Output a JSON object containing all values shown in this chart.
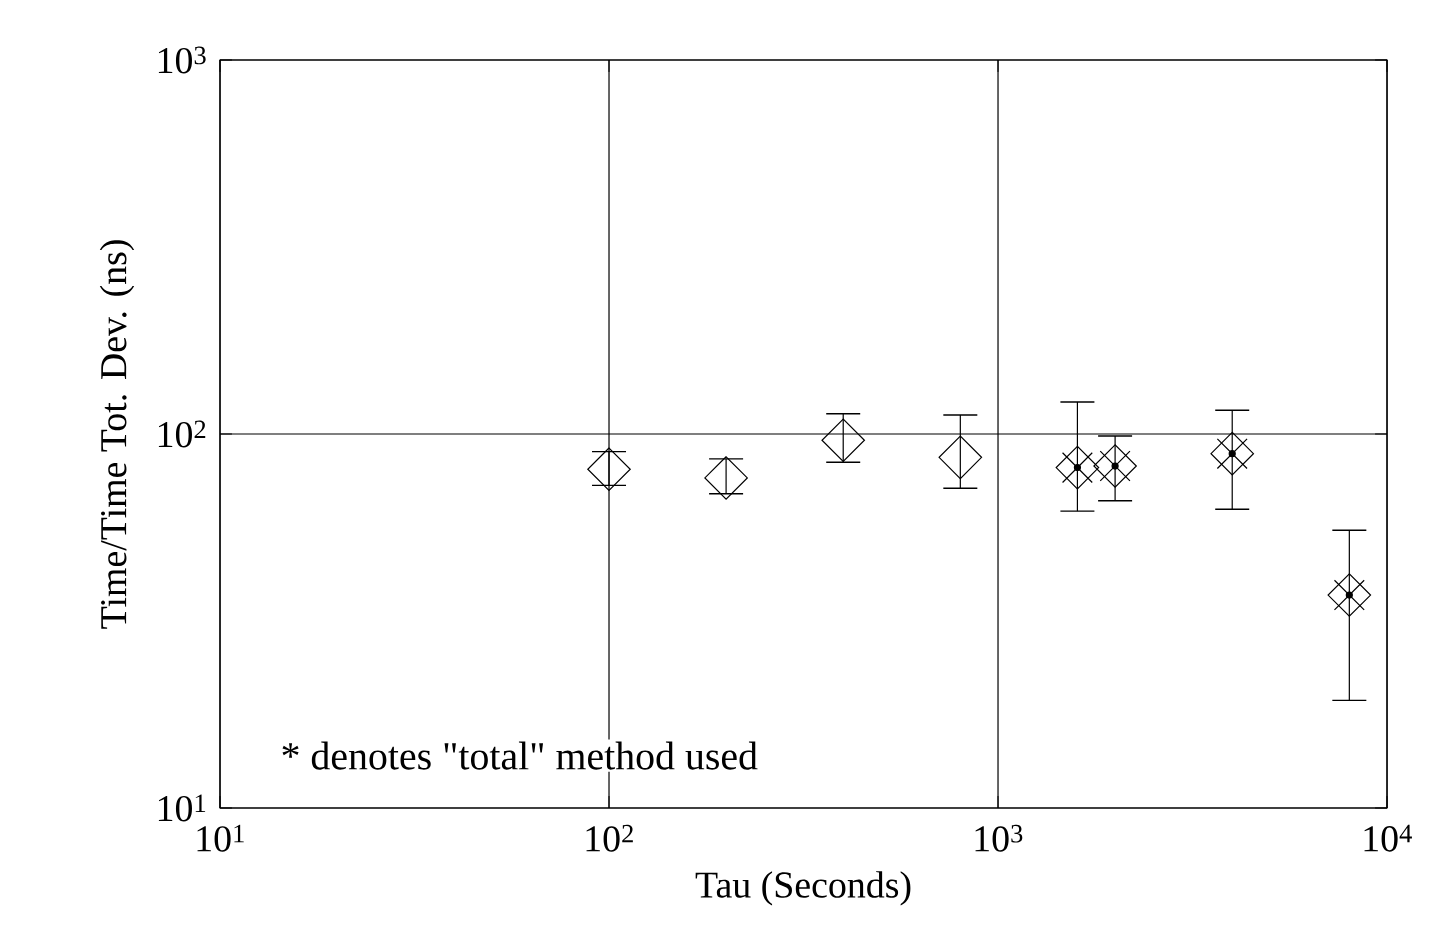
{
  "chart_data": {
    "type": "scatter",
    "xlabel": "Tau (Seconds)",
    "ylabel": "Time/Time Tot. Dev. (ns)",
    "log": "xy",
    "grid": true,
    "xlim": [
      10,
      10000
    ],
    "ylim": [
      10,
      1000
    ],
    "xticks": [
      {
        "value": 10,
        "label": "10$^{1}$"
      },
      {
        "value": 100,
        "label": "10$^{2}$"
      },
      {
        "value": 1000,
        "label": "10$^{3}$"
      },
      {
        "value": 10000,
        "label": "10$^{4}$"
      }
    ],
    "yticks": [
      {
        "value": 10,
        "label": "10$^{1}$"
      },
      {
        "value": 100,
        "label": "10$^{2}$"
      },
      {
        "value": 1000,
        "label": "10$^{3}$"
      }
    ],
    "annotations": [
      "* denotes \"total\" method used"
    ],
    "series": [
      {
        "color": "#000000",
        "marker": "diamond",
        "x": [
          100,
          200,
          400,
          800
        ],
        "values": [
          80.5,
          76.3,
          96.2,
          86.6
        ],
        "errors": [
          [
            72.9,
            89.7
          ],
          [
            69.2,
            85.8
          ],
          [
            84.0,
            113.3
          ],
          [
            71.6,
            112.4
          ]
        ]
      },
      {
        "color": "#000000",
        "marker": "star",
        "x": [
          1600,
          2000,
          4000,
          8000
        ],
        "values": [
          81.3,
          82.1,
          88.6,
          37.1
        ],
        "errors": [
          [
            62.2,
            121.8
          ],
          [
            66.3,
            98.8
          ],
          [
            62.9,
            115.7
          ],
          [
            19.4,
            55.3
          ]
        ]
      }
    ]
  }
}
